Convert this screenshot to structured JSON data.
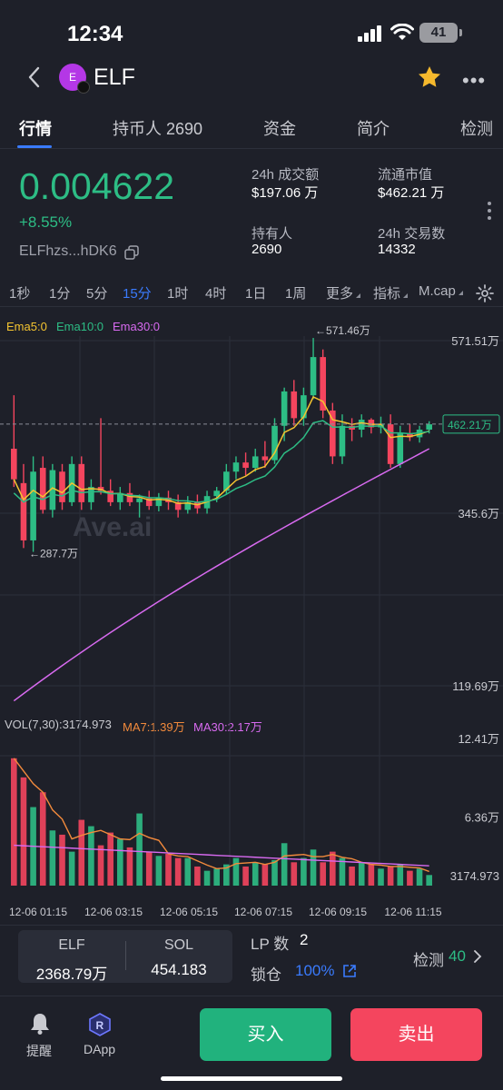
{
  "status_bar": {
    "time": "12:34",
    "battery": "41"
  },
  "header": {
    "token_name": "ELF",
    "avatar_letter": "E"
  },
  "tabs": [
    {
      "label": "行情",
      "active": true
    },
    {
      "label": "持币人 2690",
      "active": false
    },
    {
      "label": "资金",
      "active": false
    },
    {
      "label": "简介",
      "active": false
    },
    {
      "label": "检测",
      "active": false
    }
  ],
  "summary": {
    "price": "0.004622",
    "change": "+8.55%",
    "address": "ELFhzs...hDK6",
    "stats": [
      {
        "label": "24h 成交额",
        "value": "$197.06 万"
      },
      {
        "label": "流通市值",
        "value": "$462.21 万"
      },
      {
        "label": "持有人",
        "value": "2690"
      },
      {
        "label": "24h 交易数",
        "value": "14332"
      }
    ]
  },
  "toolbar": {
    "timeframes": [
      "1秒",
      "1分",
      "5分",
      "15分",
      "1时",
      "4时",
      "1日",
      "1周"
    ],
    "active_timeframe": "15分",
    "more": "更多",
    "indicator": "指标",
    "mcap": "M.cap"
  },
  "chart_data": {
    "type": "candlestick",
    "price_legend": {
      "ema5": "Ema5:0",
      "ema10": "Ema10:0",
      "ema30": "Ema30:0"
    },
    "watermark": "Ave.ai",
    "y_axis_labels": [
      "571.51万",
      "345.6万",
      "119.69万"
    ],
    "current_price_tag": "462.21万",
    "high_label": "←571.46万",
    "low_label": "←287.7万",
    "volume_legend": {
      "vol": "VOL(7,30):3174.973",
      "ma7": "MA7:1.39万",
      "ma30": "MA30:2.17万"
    },
    "volume_axis_labels": [
      "12.41万",
      "6.36万",
      "3174.973"
    ],
    "x_labels": [
      "12-06 01:15",
      "12-06 03:15",
      "12-06 05:15",
      "12-06 07:15",
      "12-06 09:15",
      "12-06 11:15"
    ],
    "ylim": [
      119.69,
      571.51
    ],
    "volume_ylim": [
      0,
      12.41
    ],
    "candles": [
      {
        "o": 430,
        "h": 500,
        "l": 380,
        "c": 390
      },
      {
        "o": 385,
        "h": 410,
        "l": 300,
        "c": 310
      },
      {
        "o": 310,
        "h": 420,
        "l": 295,
        "c": 400
      },
      {
        "o": 405,
        "h": 420,
        "l": 345,
        "c": 350
      },
      {
        "o": 350,
        "h": 410,
        "l": 340,
        "c": 402
      },
      {
        "o": 400,
        "h": 410,
        "l": 350,
        "c": 360
      },
      {
        "o": 360,
        "h": 420,
        "l": 355,
        "c": 410
      },
      {
        "o": 410,
        "h": 420,
        "l": 350,
        "c": 360
      },
      {
        "o": 360,
        "h": 390,
        "l": 350,
        "c": 380
      },
      {
        "o": 380,
        "h": 470,
        "l": 370,
        "c": 375
      },
      {
        "o": 375,
        "h": 390,
        "l": 355,
        "c": 360
      },
      {
        "o": 360,
        "h": 380,
        "l": 350,
        "c": 372
      },
      {
        "o": 372,
        "h": 385,
        "l": 355,
        "c": 360
      },
      {
        "o": 360,
        "h": 370,
        "l": 340,
        "c": 365
      },
      {
        "o": 365,
        "h": 375,
        "l": 350,
        "c": 355
      },
      {
        "o": 355,
        "h": 372,
        "l": 348,
        "c": 366
      },
      {
        "o": 366,
        "h": 375,
        "l": 350,
        "c": 360
      },
      {
        "o": 360,
        "h": 370,
        "l": 340,
        "c": 350
      },
      {
        "o": 350,
        "h": 368,
        "l": 345,
        "c": 360
      },
      {
        "o": 360,
        "h": 370,
        "l": 345,
        "c": 352
      },
      {
        "o": 352,
        "h": 375,
        "l": 345,
        "c": 368
      },
      {
        "o": 368,
        "h": 380,
        "l": 360,
        "c": 375
      },
      {
        "o": 375,
        "h": 410,
        "l": 370,
        "c": 400
      },
      {
        "o": 400,
        "h": 420,
        "l": 390,
        "c": 412
      },
      {
        "o": 412,
        "h": 425,
        "l": 395,
        "c": 405
      },
      {
        "o": 405,
        "h": 430,
        "l": 400,
        "c": 420
      },
      {
        "o": 420,
        "h": 440,
        "l": 405,
        "c": 415
      },
      {
        "o": 415,
        "h": 470,
        "l": 410,
        "c": 460
      },
      {
        "o": 460,
        "h": 510,
        "l": 440,
        "c": 505
      },
      {
        "o": 505,
        "h": 520,
        "l": 460,
        "c": 470
      },
      {
        "o": 470,
        "h": 510,
        "l": 460,
        "c": 500
      },
      {
        "o": 500,
        "h": 575,
        "l": 495,
        "c": 550
      },
      {
        "o": 550,
        "h": 560,
        "l": 470,
        "c": 480
      },
      {
        "o": 480,
        "h": 490,
        "l": 410,
        "c": 420
      },
      {
        "o": 420,
        "h": 475,
        "l": 410,
        "c": 460
      },
      {
        "o": 460,
        "h": 470,
        "l": 440,
        "c": 455
      },
      {
        "o": 455,
        "h": 475,
        "l": 445,
        "c": 468
      },
      {
        "o": 468,
        "h": 470,
        "l": 450,
        "c": 458
      },
      {
        "o": 458,
        "h": 472,
        "l": 450,
        "c": 462
      },
      {
        "o": 462,
        "h": 475,
        "l": 405,
        "c": 410
      },
      {
        "o": 410,
        "h": 460,
        "l": 405,
        "c": 450
      },
      {
        "o": 450,
        "h": 462,
        "l": 440,
        "c": 445
      },
      {
        "o": 445,
        "h": 460,
        "l": 438,
        "c": 455
      },
      {
        "o": 455,
        "h": 466,
        "l": 450,
        "c": 462
      }
    ],
    "volumes": [
      12.0,
      10.2,
      7.4,
      8.8,
      5.2,
      4.8,
      3.2,
      6.2,
      5.6,
      3.8,
      5.0,
      4.4,
      3.6,
      6.8,
      3.2,
      2.8,
      3.0,
      2.6,
      2.6,
      1.8,
      1.4,
      1.6,
      2.0,
      2.6,
      1.8,
      2.2,
      2.0,
      2.4,
      4.0,
      2.2,
      2.6,
      3.4,
      2.2,
      3.2,
      2.6,
      1.8,
      2.2,
      2.0,
      1.6,
      1.8,
      2.0,
      1.4,
      1.6,
      1.0
    ]
  },
  "bottom_panel": {
    "pair": [
      {
        "label": "ELF",
        "value": "2368.79万"
      },
      {
        "label": "SOL",
        "value": "454.183"
      }
    ],
    "lp_label": "LP 数",
    "lp_value": "2",
    "lock_label": "锁仓",
    "lock_value": "100%",
    "check_label": "检测",
    "check_value": "40"
  },
  "action_bar": {
    "alert_label": "提醒",
    "dapp_label": "DApp",
    "buy_label": "买入",
    "sell_label": "卖出"
  },
  "colors": {
    "up": "#2dbd85",
    "down": "#f4455e",
    "accent": "#3a7bfd",
    "ema5": "#f4c430",
    "ema10": "#2dbd85",
    "ema30": "#d86af0",
    "ma7": "#f28a3c",
    "ma30": "#d86af0"
  }
}
